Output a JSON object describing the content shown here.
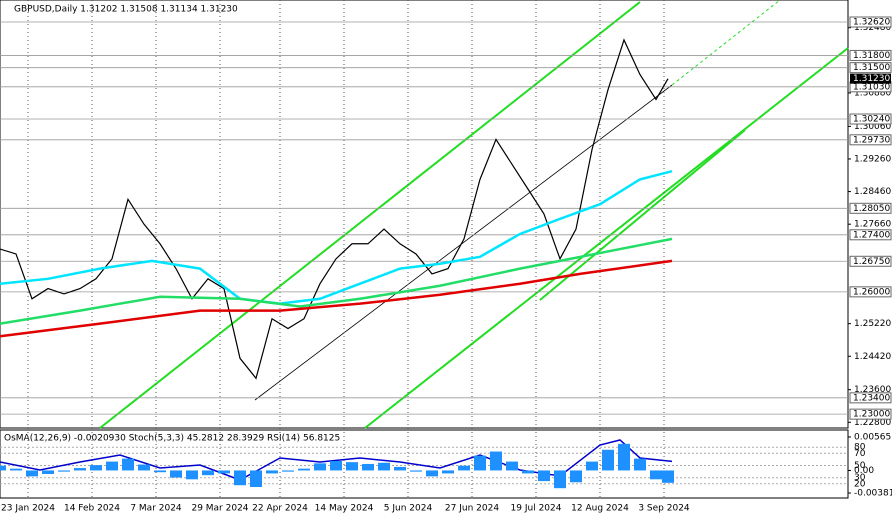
{
  "chart_data": {
    "type": "line",
    "title": "GBPUSD,Daily 1.31202 1.31508 1.31134 1.31230",
    "xlim": [
      0,
      212
    ],
    "xticks": [
      {
        "value": 7,
        "label": "23 Jan 2024"
      },
      {
        "value": 23,
        "label": "14 Feb 2024"
      },
      {
        "value": 39,
        "label": "7 Mar 2024"
      },
      {
        "value": 55,
        "label": "29 Mar 2024"
      },
      {
        "value": 70,
        "label": "22 Apr 2024"
      },
      {
        "value": 86,
        "label": "14 May 2024"
      },
      {
        "value": 102,
        "label": "5 Jun 2024"
      },
      {
        "value": 118,
        "label": "27 Jun 2024"
      },
      {
        "value": 134,
        "label": "19 Jul 2024"
      },
      {
        "value": 150,
        "label": "12 Aug 2024"
      },
      {
        "value": 166,
        "label": "3 Sep 2024"
      }
    ],
    "ylim": [
      1.2266,
      1.3316
    ],
    "yticks": [
      {
        "value": 1.3248,
        "label": "1.32480"
      },
      {
        "value": 1.3088,
        "label": "1.30880"
      },
      {
        "value": 1.3006,
        "label": "1.30060"
      },
      {
        "value": 1.2926,
        "label": "1.29260"
      },
      {
        "value": 1.2846,
        "label": "1.28460"
      },
      {
        "value": 1.2766,
        "label": "1.27660"
      },
      {
        "value": 1.2522,
        "label": "1.25220"
      },
      {
        "value": 1.2442,
        "label": "1.24420"
      },
      {
        "value": 1.236,
        "label": "1.23600"
      },
      {
        "value": 1.228,
        "label": "1.22800"
      }
    ],
    "levels": [
      {
        "value": 1.3262,
        "label": "1.32620"
      },
      {
        "value": 1.318,
        "label": "1.31800"
      },
      {
        "value": 1.315,
        "label": "1.31500"
      },
      {
        "value": 1.3103,
        "label": "1.31030"
      },
      {
        "value": 1.3024,
        "label": "1.30240"
      },
      {
        "value": 1.2973,
        "label": "1.29730"
      },
      {
        "value": 1.2805,
        "label": "1.28050"
      },
      {
        "value": 1.274,
        "label": "1.27400"
      },
      {
        "value": 1.2675,
        "label": "1.26750"
      },
      {
        "value": 1.26,
        "label": "1.26000"
      },
      {
        "value": 1.234,
        "label": "1.23400"
      },
      {
        "value": 1.23,
        "label": "1.23000"
      }
    ],
    "current": {
      "value": 1.3123,
      "label": "1.31230"
    },
    "series": [
      {
        "color": "#000000",
        "x": [
          0,
          4,
          8,
          12,
          16,
          20,
          24,
          28,
          32,
          36,
          40,
          44,
          48,
          52,
          56,
          60,
          64,
          68,
          72,
          76,
          80,
          84,
          88,
          92,
          96,
          100,
          104,
          108,
          112,
          116,
          120,
          124,
          128,
          132,
          136,
          140,
          144,
          148,
          152,
          156,
          160,
          164,
          167
        ],
        "values": [
          1.2705,
          1.2693,
          1.2583,
          1.2608,
          1.2595,
          1.2608,
          1.2632,
          1.2681,
          1.2827,
          1.2766,
          1.2718,
          1.2657,
          1.2583,
          1.2632,
          1.2608,
          1.2437,
          1.2388,
          1.2534,
          1.251,
          1.2534,
          1.262,
          1.2681,
          1.2718,
          1.2718,
          1.2754,
          1.2718,
          1.2693,
          1.2644,
          1.2657,
          1.273,
          1.2876,
          1.2974,
          1.2913,
          1.2852,
          1.2791,
          1.2681,
          1.2754,
          1.2949,
          1.3096,
          1.3218,
          1.3133,
          1.3072,
          1.3123
        ]
      },
      {
        "color": "#00e5ff",
        "x": [
          0,
          12,
          25,
          38,
          50,
          60,
          70,
          80,
          90,
          100,
          110,
          120,
          130,
          140,
          150,
          160,
          168
        ],
        "values": [
          1.262,
          1.2632,
          1.2657,
          1.2676,
          1.2657,
          1.2583,
          1.2571,
          1.2583,
          1.262,
          1.2657,
          1.2669,
          1.2686,
          1.2742,
          1.2779,
          1.2815,
          1.2876,
          1.2896
        ]
      },
      {
        "color": "#22dd66",
        "x": [
          0,
          20,
          40,
          60,
          75,
          90,
          110,
          130,
          140,
          155,
          168
        ],
        "values": [
          1.2522,
          1.2554,
          1.2588,
          1.2583,
          1.2564,
          1.2583,
          1.2615,
          1.2657,
          1.2676,
          1.2705,
          1.273
        ]
      },
      {
        "color": "#e00000",
        "x": [
          0,
          25,
          50,
          70,
          90,
          110,
          130,
          145,
          168
        ],
        "values": [
          1.2491,
          1.2522,
          1.2554,
          1.2554,
          1.2571,
          1.2593,
          1.262,
          1.2644,
          1.2676
        ]
      }
    ]
  },
  "indicator": {
    "type": "line",
    "title": "OsMA(12,26,9) -0.0020930 Stoch(5,3,3) 45.2812 28.3929 RSI(14) 56.8125",
    "ylim": [
      -3.3,
      108.2
    ],
    "yticks": [
      80,
      70,
      50,
      30,
      20
    ],
    "y2lim": [
      -0.00466,
      0.00684
    ],
    "y2ticks": [
      0.005655,
      {
        "value": 0,
        "label": "0.00"
      },
      -0.003817
    ],
    "series": [
      {
        "color": "#0000cd",
        "x": [
          0,
          10,
          20,
          30,
          40,
          50,
          60,
          70,
          80,
          90,
          100,
          110,
          120,
          130,
          140,
          150,
          155,
          160,
          168
        ],
        "values": [
          55.7,
          42.6,
          55.7,
          67.2,
          45.9,
          50.8,
          26.2,
          62.3,
          55.7,
          62.3,
          55.7,
          45.9,
          67.2,
          42.6,
          32.8,
          83.6,
          91.8,
          62.3,
          56.8125
        ]
      },
      {
        "color": "#1e90ff",
        "axis": "y2",
        "kind": "bar",
        "x": [
          0,
          4,
          8,
          12,
          16,
          20,
          24,
          28,
          32,
          36,
          40,
          44,
          48,
          52,
          56,
          60,
          64,
          68,
          72,
          76,
          80,
          84,
          88,
          92,
          96,
          100,
          104,
          108,
          112,
          116,
          120,
          124,
          128,
          132,
          136,
          140,
          144,
          148,
          152,
          156,
          160,
          164,
          167
        ],
        "values": [
          0.0008,
          0.0003,
          -0.001,
          -0.0006,
          -0.0002,
          0.0004,
          0.0009,
          0.0015,
          0.002,
          0.001,
          -0.0003,
          -0.0012,
          -0.0015,
          -0.0008,
          -0.0005,
          -0.0025,
          -0.0028,
          -0.0005,
          -0.0002,
          0.0003,
          0.0012,
          0.0016,
          0.0014,
          0.0011,
          0.0013,
          0.0006,
          -0.0002,
          -0.001,
          -0.0005,
          0.0008,
          0.0025,
          0.0032,
          0.0015,
          -0.0005,
          -0.0018,
          -0.003,
          -0.002,
          0.0015,
          0.0035,
          0.0045,
          0.002,
          -0.0015,
          -0.002093
        ]
      }
    ]
  }
}
